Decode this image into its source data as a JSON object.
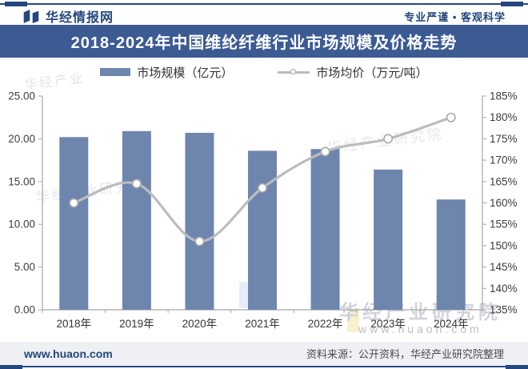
{
  "header": {
    "brand": "华经情报网",
    "slogan": "专业严谨 • 客观科学"
  },
  "title": "2018-2024年中国维纶纤维行业市场规模及价格走势",
  "legend": {
    "bar_label": "市场规模（亿元）",
    "line_label": "市场均价（万元/吨）"
  },
  "chart_data": {
    "type": "bar+line combo",
    "categories": [
      "2018年",
      "2019年",
      "2020年",
      "2021年",
      "2022年",
      "2023年",
      "2024年"
    ],
    "series": [
      {
        "name": "市场规模（亿元）",
        "type": "bar",
        "axis": "left",
        "values": [
          20.2,
          20.9,
          20.7,
          18.6,
          18.8,
          16.4,
          12.9
        ]
      },
      {
        "name": "市场均价（万元/吨）",
        "type": "line",
        "axis": "right",
        "values": [
          160,
          164.5,
          151,
          163.5,
          172,
          175,
          180
        ]
      }
    ],
    "left_axis": {
      "min": 0,
      "max": 25,
      "step": 5,
      "ticks": [
        "0.00",
        "5.00",
        "10.00",
        "15.00",
        "20.00",
        "25.00"
      ]
    },
    "right_axis": {
      "min": 135,
      "max": 185,
      "step": 5,
      "ticks": [
        "135%",
        "140%",
        "145%",
        "150%",
        "155%",
        "160%",
        "165%",
        "170%",
        "175%",
        "180%",
        "185%"
      ]
    },
    "grid": false,
    "legend_position": "top",
    "colors": {
      "bar": "#6e86ae",
      "line": "#bcbcc0",
      "marker_fill": "#ffffff",
      "marker_stroke": "#a8a8ac",
      "axis": "#a6a6a6",
      "tick_text": "#3d3d3d"
    }
  },
  "watermarks": {
    "faint": [
      "华经产业",
      "华经产业研究院",
      "华经产业研究院"
    ],
    "brand_large": "华经产业研究院",
    "brand_url": "www.huaon.com"
  },
  "footer": {
    "site": "www.huaon.com",
    "source": "资料来源：公开资料，华经产业研究院整理"
  },
  "theme": {
    "navy": "#3c5b93",
    "navy_dark": "#24477e",
    "footer_bg": "#eef0f4",
    "watermark": "#c9cdd6"
  }
}
